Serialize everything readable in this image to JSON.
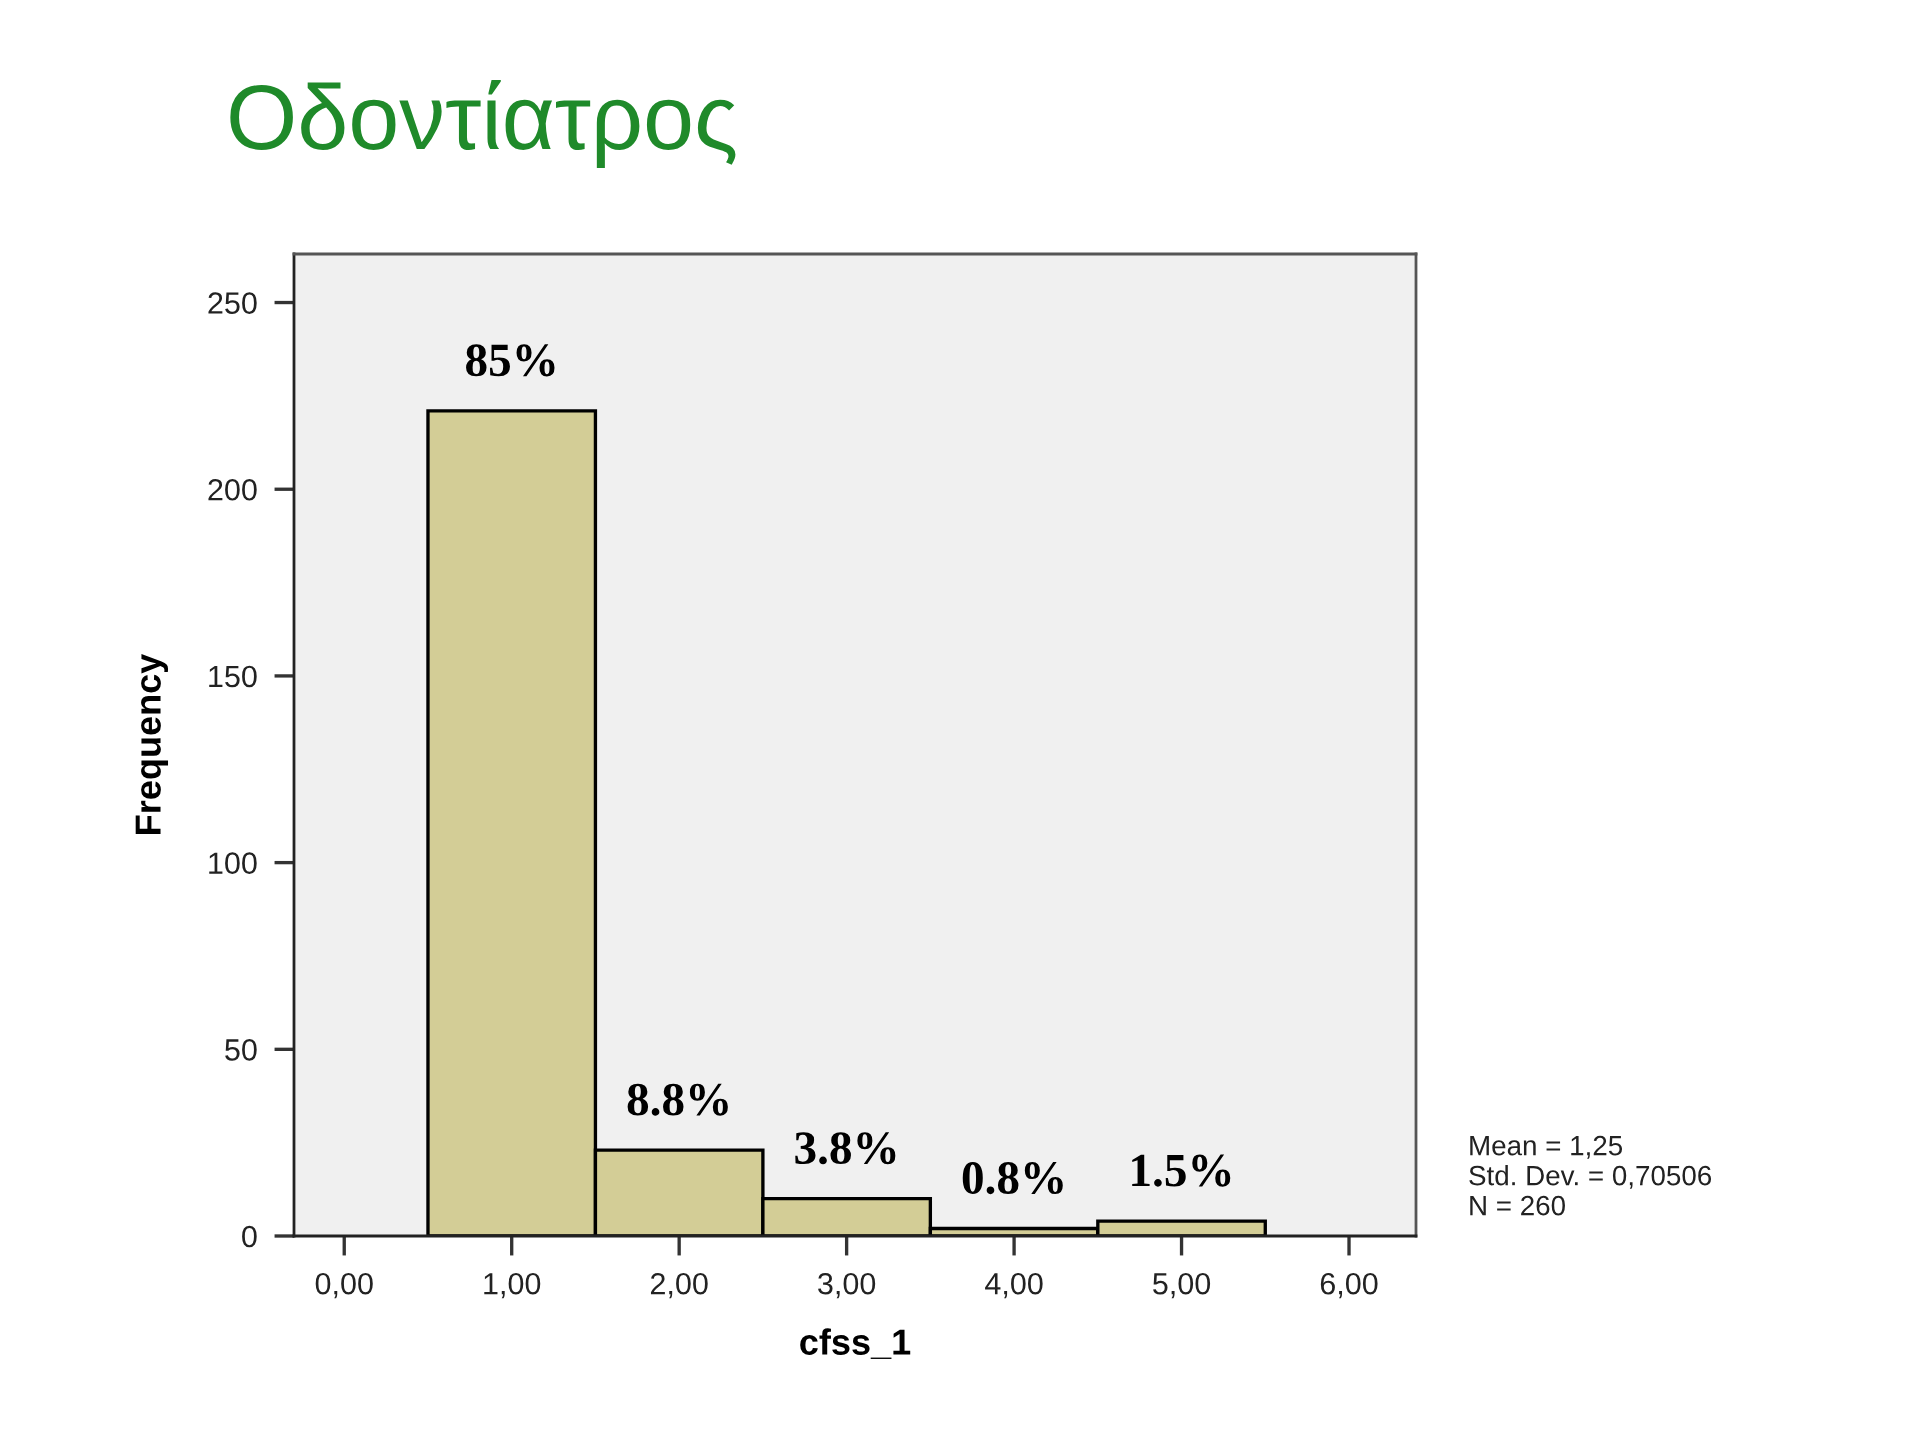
{
  "chart_data": {
    "type": "histogram",
    "title": "Οδοντίατρος",
    "xlabel": "cfss_1",
    "ylabel": "Frequency",
    "bins": [
      0.5,
      1.5,
      2.5,
      3.5,
      4.5,
      5.5
    ],
    "values": [
      221,
      23,
      10,
      2,
      4
    ],
    "color": "#d3cd96",
    "xlim": [
      -0.3,
      6.4
    ],
    "ylim": [
      0,
      263
    ],
    "xticks": [
      {
        "value": 0,
        "label": "0,00"
      },
      {
        "value": 1,
        "label": "1,00"
      },
      {
        "value": 2,
        "label": "2,00"
      },
      {
        "value": 3,
        "label": "3,00"
      },
      {
        "value": 4,
        "label": "4,00"
      },
      {
        "value": 5,
        "label": "5,00"
      },
      {
        "value": 6,
        "label": "6,00"
      }
    ],
    "yticks": [
      0,
      50,
      100,
      150,
      200,
      250
    ],
    "annotations": [
      {
        "text": "85%",
        "x": 1,
        "y": 221
      },
      {
        "text": "8.8%",
        "x": 2,
        "y": 23
      },
      {
        "text": "3.8%",
        "x": 3,
        "y": 10
      },
      {
        "text": "0.8%",
        "x": 4,
        "y": 2
      },
      {
        "text": "1.5%",
        "x": 5,
        "y": 4
      },
      "Mean = 1,25",
      "Std. Dev. = 0,70506",
      "N = 260"
    ],
    "grid": false,
    "legend": false
  }
}
